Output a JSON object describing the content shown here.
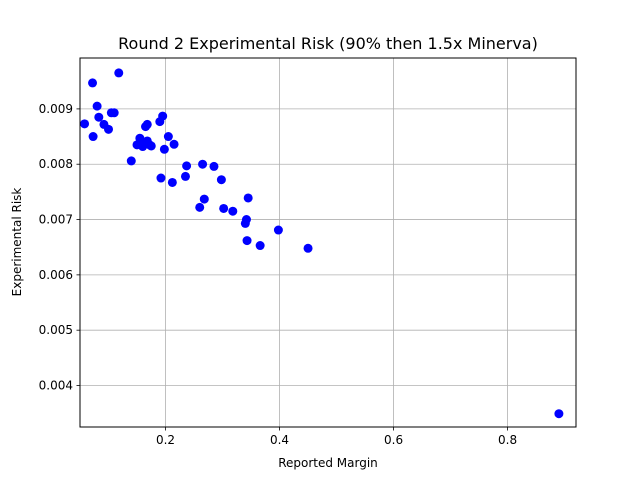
{
  "chart_data": {
    "type": "scatter",
    "title": "Round 2 Experimental Risk (90% then 1.5x Minerva)",
    "xlabel": "Reported Margin",
    "ylabel": "Experimental Risk",
    "xlim": [
      0.05,
      0.92
    ],
    "ylim": [
      0.00325,
      0.00992
    ],
    "xticks": [
      0.2,
      0.4,
      0.6,
      0.8
    ],
    "xtick_labels": [
      "0.2",
      "0.4",
      "0.6",
      "0.8"
    ],
    "yticks": [
      0.004,
      0.005,
      0.006,
      0.007,
      0.008,
      0.009
    ],
    "ytick_labels": [
      "0.004",
      "0.005",
      "0.006",
      "0.007",
      "0.008",
      "0.009"
    ],
    "grid": true,
    "marker_color": "#0000ff",
    "series": [
      {
        "x": [
          0.058,
          0.072,
          0.073,
          0.08,
          0.083,
          0.092,
          0.1,
          0.105,
          0.11,
          0.118,
          0.14,
          0.15,
          0.155,
          0.16,
          0.163,
          0.165,
          0.168,
          0.168,
          0.172,
          0.175,
          0.19,
          0.192,
          0.195,
          0.198,
          0.205,
          0.212,
          0.215,
          0.235,
          0.237,
          0.26,
          0.265,
          0.268,
          0.285,
          0.298,
          0.302,
          0.318,
          0.34,
          0.342,
          0.343,
          0.345,
          0.366,
          0.398,
          0.45,
          0.89
        ],
        "y": [
          0.00873,
          0.00947,
          0.0085,
          0.00905,
          0.00885,
          0.00872,
          0.00863,
          0.00893,
          0.00893,
          0.00965,
          0.00806,
          0.00835,
          0.00847,
          0.00832,
          0.00838,
          0.00868,
          0.00872,
          0.00842,
          0.00835,
          0.00833,
          0.00877,
          0.00775,
          0.00887,
          0.00827,
          0.0085,
          0.00767,
          0.00836,
          0.00778,
          0.00797,
          0.00722,
          0.008,
          0.00737,
          0.00796,
          0.00772,
          0.0072,
          0.00715,
          0.00693,
          0.007,
          0.00662,
          0.00739,
          0.00653,
          0.00681,
          0.00648,
          0.00349
        ]
      }
    ]
  }
}
